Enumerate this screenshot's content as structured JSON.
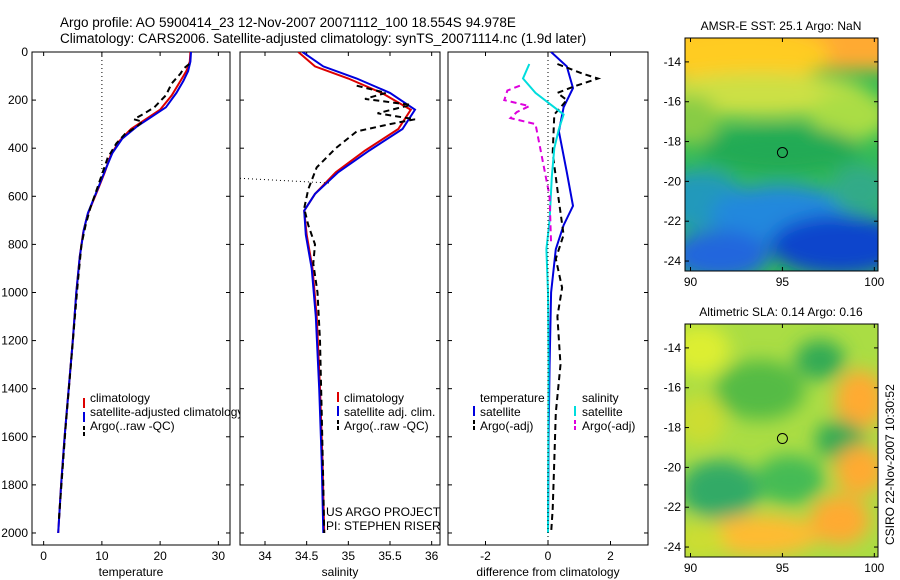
{
  "header": {
    "line1": "Argo profile: AO 5900414_23 12-Nov-2007 20071112_100 18.554S 94.978E",
    "line2": "Climatology: CARS2006. Satellite-adjusted climatology: synTS_20071114.nc (1.9d later)"
  },
  "side_label": "CSIRO 22-Nov-2007 10:30:52",
  "credit": {
    "line1": "US ARGO PROJECT",
    "line2": "PI: STEPHEN RISER"
  },
  "colors": {
    "climatology": "#dd0000",
    "satellite": "#0000dd",
    "argo": "#000000",
    "sat_sal": "#00dddd",
    "argo_sal": "#dd00dd"
  },
  "chart_data": [
    {
      "type": "line",
      "xlabel": "temperature",
      "xlim": [
        -2,
        32
      ],
      "ylim": [
        2050,
        0
      ],
      "xticks": [
        0,
        10,
        20,
        30
      ],
      "yticks": [
        0,
        200,
        400,
        600,
        800,
        1000,
        1200,
        1400,
        1600,
        1800,
        2000
      ],
      "legend": [
        "climatology",
        "satellite-adjusted climatology",
        "Argo(..raw -QC)"
      ],
      "series": [
        {
          "name": "climatology",
          "color": "red",
          "style": "solid",
          "points": [
            [
              25.2,
              0
            ],
            [
              25.1,
              40
            ],
            [
              24.5,
              80
            ],
            [
              23.5,
              120
            ],
            [
              22,
              180
            ],
            [
              20,
              240
            ],
            [
              17.5,
              280
            ],
            [
              15,
              320
            ],
            [
              13,
              370
            ],
            [
              11.5,
              430
            ],
            [
              10.5,
              500
            ],
            [
              9.5,
              560
            ],
            [
              8.5,
              620
            ],
            [
              7.5,
              680
            ],
            [
              6.8,
              750
            ],
            [
              6.2,
              850
            ],
            [
              5.6,
              1000
            ],
            [
              5,
              1200
            ],
            [
              4.3,
              1400
            ],
            [
              3.6,
              1600
            ],
            [
              3,
              1800
            ],
            [
              2.5,
              2000
            ]
          ]
        },
        {
          "name": "satellite-adjusted climatology",
          "color": "blue",
          "style": "solid",
          "points": [
            [
              25.3,
              0
            ],
            [
              25.2,
              40
            ],
            [
              24.8,
              80
            ],
            [
              24,
              120
            ],
            [
              22.8,
              170
            ],
            [
              21,
              230
            ],
            [
              18.5,
              270
            ],
            [
              16,
              310
            ],
            [
              13.5,
              360
            ],
            [
              11.8,
              420
            ],
            [
              10.6,
              490
            ],
            [
              9.6,
              550
            ],
            [
              8.6,
              610
            ],
            [
              7.6,
              670
            ],
            [
              6.9,
              740
            ],
            [
              6.2,
              850
            ],
            [
              5.6,
              1000
            ],
            [
              5,
              1200
            ],
            [
              4.3,
              1400
            ],
            [
              3.6,
              1600
            ],
            [
              3,
              1800
            ],
            [
              2.5,
              2000
            ]
          ]
        },
        {
          "name": "Argo(..raw -QC)",
          "color": "black",
          "style": "dashed",
          "points": [
            [
              25,
              50
            ],
            [
              24,
              70
            ],
            [
              23.5,
              90
            ],
            [
              22,
              130
            ],
            [
              21,
              180
            ],
            [
              19,
              230
            ],
            [
              17,
              260
            ],
            [
              15.5,
              280
            ],
            [
              17,
              290
            ],
            [
              16,
              310
            ],
            [
              14,
              340
            ],
            [
              12.5,
              380
            ],
            [
              11,
              440
            ],
            [
              10,
              510
            ],
            [
              9,
              580
            ],
            [
              8,
              650
            ],
            [
              7.2,
              720
            ],
            [
              6.5,
              800
            ],
            [
              5.9,
              950
            ],
            [
              5.2,
              1150
            ],
            [
              4.5,
              1350
            ],
            [
              3.8,
              1550
            ],
            [
              3.2,
              1750
            ],
            [
              2.6,
              1950
            ]
          ]
        },
        {
          "name": "",
          "color": "black",
          "style": "dotted",
          "points": [
            [
              10,
              0
            ],
            [
              10,
              520
            ]
          ]
        }
      ]
    },
    {
      "type": "line",
      "xlabel": "salinity",
      "xlim": [
        33.7,
        36.1
      ],
      "ylim": [
        2050,
        0
      ],
      "xticks": [
        34,
        34.5,
        35,
        35.5,
        36
      ],
      "yticks": [
        0,
        200,
        400,
        600,
        800,
        1000,
        1200,
        1400,
        1600,
        1800,
        2000
      ],
      "legend": [
        "climatology",
        "satellite adj. clim.",
        "Argo(..raw -QC)"
      ],
      "series": [
        {
          "name": "climatology",
          "color": "red",
          "style": "solid",
          "points": [
            [
              34.4,
              0
            ],
            [
              34.6,
              60
            ],
            [
              35,
              110
            ],
            [
              35.4,
              170
            ],
            [
              35.75,
              240
            ],
            [
              35.6,
              320
            ],
            [
              35.2,
              410
            ],
            [
              34.85,
              500
            ],
            [
              34.6,
              590
            ],
            [
              34.47,
              660
            ],
            [
              34.5,
              760
            ],
            [
              34.57,
              900
            ],
            [
              34.62,
              1100
            ],
            [
              34.66,
              1400
            ],
            [
              34.69,
              1700
            ],
            [
              34.71,
              2000
            ]
          ]
        },
        {
          "name": "satellite adj. clim.",
          "color": "blue",
          "style": "solid",
          "points": [
            [
              34.45,
              0
            ],
            [
              34.7,
              60
            ],
            [
              35.1,
              110
            ],
            [
              35.5,
              170
            ],
            [
              35.8,
              240
            ],
            [
              35.65,
              320
            ],
            [
              35.25,
              410
            ],
            [
              34.88,
              500
            ],
            [
              34.6,
              590
            ],
            [
              34.47,
              660
            ],
            [
              34.49,
              760
            ],
            [
              34.56,
              900
            ],
            [
              34.61,
              1100
            ],
            [
              34.65,
              1400
            ],
            [
              34.68,
              1700
            ],
            [
              34.7,
              2000
            ]
          ]
        },
        {
          "name": "Argo(..raw -QC)",
          "color": "black",
          "style": "dashed",
          "points": [
            [
              35.1,
              140
            ],
            [
              35.45,
              170
            ],
            [
              35.2,
              195
            ],
            [
              35.75,
              220
            ],
            [
              35.35,
              255
            ],
            [
              35.8,
              280
            ],
            [
              35.5,
              300
            ],
            [
              35.1,
              330
            ],
            [
              34.85,
              400
            ],
            [
              34.62,
              480
            ],
            [
              34.52,
              570
            ],
            [
              34.47,
              650
            ],
            [
              34.52,
              720
            ],
            [
              34.6,
              800
            ],
            [
              34.58,
              880
            ],
            [
              34.63,
              1000
            ],
            [
              34.66,
              1200
            ],
            [
              34.68,
              1500
            ],
            [
              34.7,
              1800
            ],
            [
              34.71,
              2000
            ]
          ]
        },
        {
          "name": "",
          "color": "black",
          "style": "dotted",
          "points": [
            [
              33.7,
              525
            ],
            [
              34.8,
              545
            ]
          ]
        }
      ]
    },
    {
      "type": "line",
      "xlabel": "difference from climatology",
      "xlim": [
        -3.2,
        3.2
      ],
      "ylim": [
        2050,
        0
      ],
      "xticks": [
        -2,
        0,
        2
      ],
      "yticks": [
        0,
        200,
        400,
        600,
        800,
        1000,
        1200,
        1400,
        1600,
        1800,
        2000
      ],
      "legend_temperature": [
        "temperature",
        "satellite",
        "Argo(-adj)"
      ],
      "legend_salinity": [
        "salinity",
        "satellite",
        "Argo(-adj)"
      ],
      "series": [
        {
          "name": "temperature satellite",
          "color": "blue",
          "style": "solid",
          "points": [
            [
              0.1,
              0
            ],
            [
              0.6,
              60
            ],
            [
              0.8,
              150
            ],
            [
              0.5,
              230
            ],
            [
              0.35,
              330
            ],
            [
              0.6,
              500
            ],
            [
              0.8,
              640
            ],
            [
              0.5,
              720
            ],
            [
              0.25,
              820
            ],
            [
              0.1,
              1000
            ],
            [
              0.05,
              1300
            ],
            [
              0.02,
              1600
            ],
            [
              0,
              2000
            ]
          ]
        },
        {
          "name": "temperature Argo(-adj)",
          "color": "black",
          "style": "dashed",
          "points": [
            [
              0.3,
              50
            ],
            [
              1.1,
              90
            ],
            [
              1.6,
              110
            ],
            [
              0.9,
              140
            ],
            [
              0.3,
              170
            ],
            [
              0.6,
              200
            ],
            [
              0.2,
              260
            ],
            [
              0.15,
              420
            ],
            [
              0.35,
              620
            ],
            [
              0.5,
              760
            ],
            [
              0.25,
              860
            ],
            [
              0.45,
              980
            ],
            [
              0.3,
              1100
            ],
            [
              0.4,
              1300
            ],
            [
              0.25,
              1500
            ],
            [
              0.2,
              1700
            ],
            [
              0.15,
              1900
            ],
            [
              0.1,
              2000
            ]
          ]
        },
        {
          "name": "salinity satellite",
          "color": "cyan",
          "style": "solid",
          "points": [
            [
              -0.6,
              50
            ],
            [
              -0.8,
              110
            ],
            [
              -0.4,
              170
            ],
            [
              0.2,
              230
            ],
            [
              0.5,
              260
            ],
            [
              0.35,
              320
            ],
            [
              0.2,
              400
            ],
            [
              0.12,
              520
            ],
            [
              0.05,
              700
            ],
            [
              -0.05,
              820
            ],
            [
              0,
              1000
            ],
            [
              0.02,
              1300
            ],
            [
              0,
              2000
            ]
          ]
        },
        {
          "name": "salinity Argo(-adj)",
          "color": "magenta",
          "style": "dashed",
          "points": [
            [
              -0.9,
              140
            ],
            [
              -1.3,
              160
            ],
            [
              -1.4,
              200
            ],
            [
              -0.6,
              225
            ],
            [
              -1.0,
              250
            ],
            [
              -1.2,
              275
            ],
            [
              -0.4,
              300
            ],
            [
              0.05,
              600
            ],
            [
              0.1,
              800
            ]
          ]
        },
        {
          "name": "",
          "color": "black",
          "style": "dotted",
          "points": [
            [
              0,
              0
            ],
            [
              0,
              2050
            ]
          ]
        }
      ]
    },
    {
      "type": "heatmap",
      "title": "AMSR-E SST: 25.1 Argo: NaN",
      "xlim": [
        89.7,
        100.2
      ],
      "ylim": [
        -24.5,
        -12.8
      ],
      "xticks": [
        90,
        95,
        100
      ],
      "yticks": [
        -14,
        -16,
        -18,
        -20,
        -22,
        -24
      ],
      "marker": {
        "lon": 95,
        "lat": -18.55
      },
      "regions": [
        "warm north (orange/yellow)",
        "green middle",
        "cool south (blue)"
      ]
    },
    {
      "type": "heatmap",
      "title": "Altimetric SLA: 0.14 Argo: 0.16",
      "xlim": [
        89.7,
        100.2
      ],
      "ylim": [
        -24.5,
        -12.8
      ],
      "xticks": [
        90,
        95,
        100
      ],
      "yticks": [
        -14,
        -16,
        -18,
        -20,
        -22,
        -24
      ],
      "marker": {
        "lon": 95,
        "lat": -18.55
      },
      "regions": [
        "mixed green/yellow eddies",
        "orange patches east and south"
      ]
    }
  ]
}
